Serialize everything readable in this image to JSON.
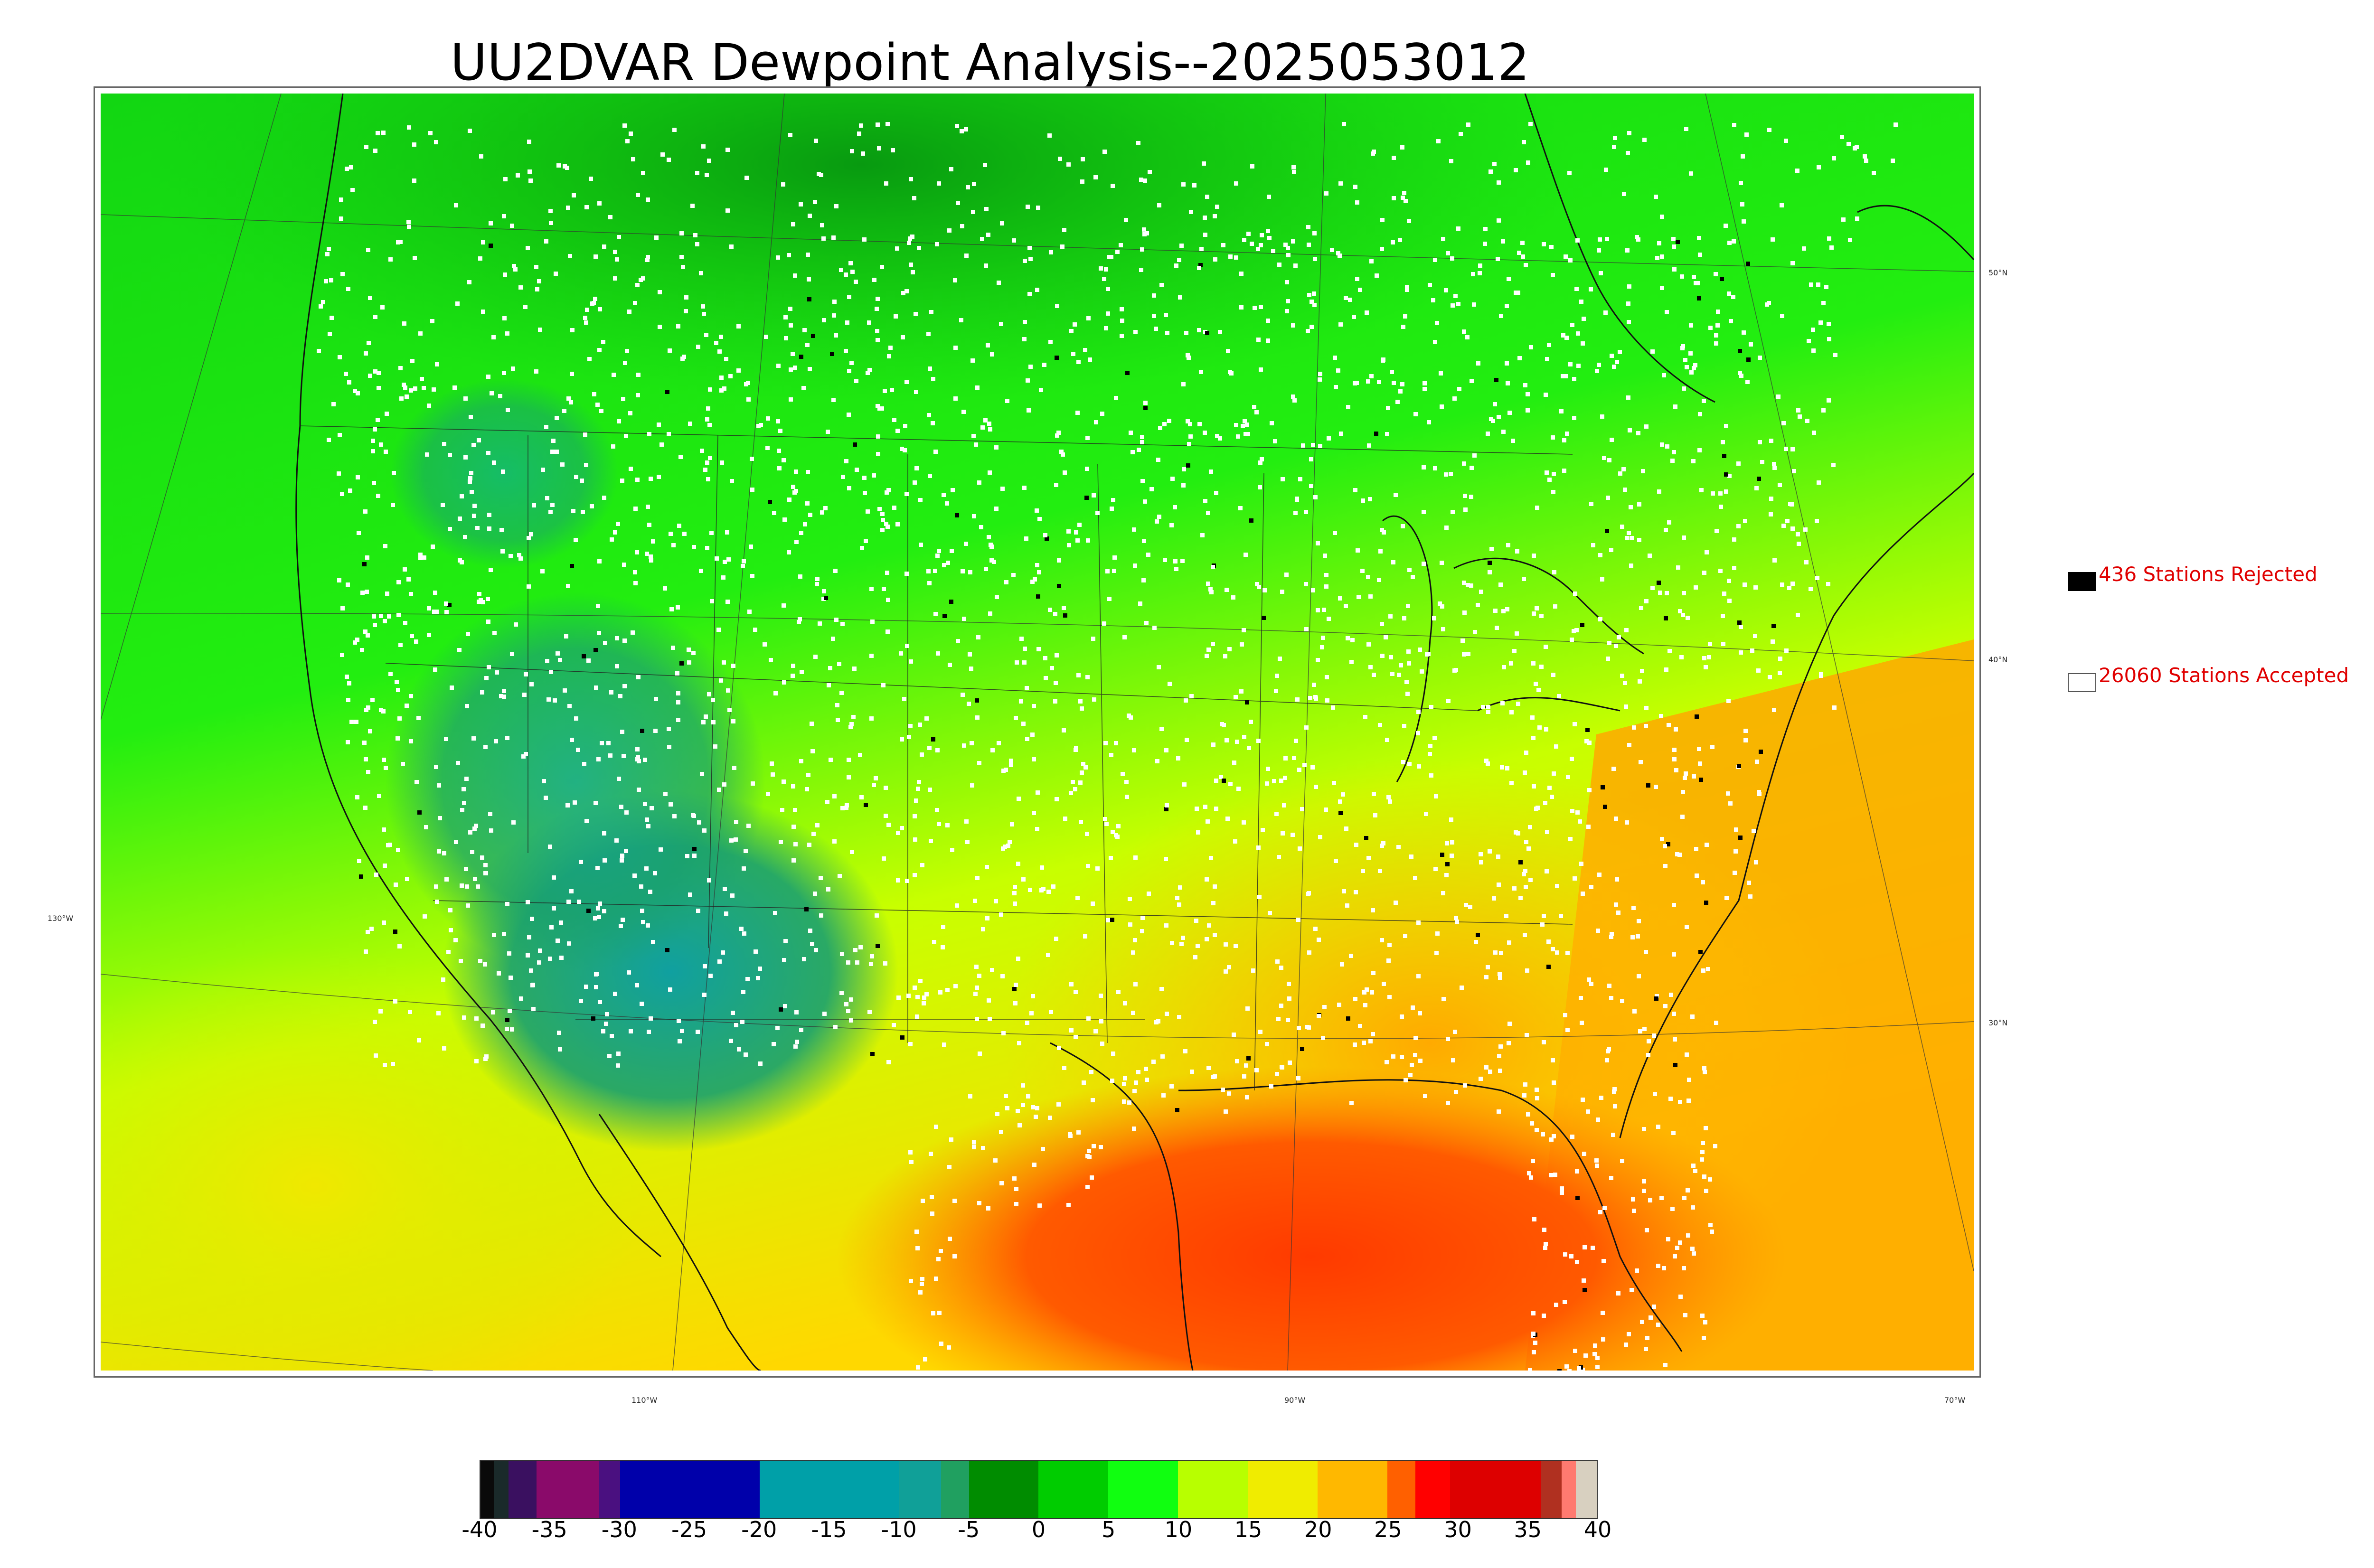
{
  "title": "UU2DVAR Dewpoint Analysis--2025053012",
  "legend": {
    "rejected": {
      "label": "436 Stations Rejected",
      "color": "#000000"
    },
    "accepted": {
      "label": "26060 Stations Accepted",
      "color": "#ffffff"
    }
  },
  "lat_labels": [
    "50°N",
    "40°N",
    "30°N"
  ],
  "lon_labels": [
    "130°W",
    "110°W",
    "90°W",
    "70°W"
  ],
  "colorbar": {
    "ticks": [
      "-40",
      "-35",
      "-30",
      "-25",
      "-20",
      "-15",
      "-10",
      "-5",
      "0",
      "5",
      "10",
      "15",
      "20",
      "25",
      "30",
      "35",
      "40"
    ],
    "min": -40,
    "max": 40,
    "units_note": "",
    "stops": [
      {
        "from": -40,
        "to": -39,
        "color": "#0a0a0a"
      },
      {
        "from": -39,
        "to": -38,
        "color": "#1a2a2a"
      },
      {
        "from": -38,
        "to": -36,
        "color": "#3a1060"
      },
      {
        "from": -36,
        "to": -31.5,
        "color": "#8a0a6a"
      },
      {
        "from": -31.5,
        "to": -30,
        "color": "#4a1080"
      },
      {
        "from": -30,
        "to": -20,
        "color": "#0000aa"
      },
      {
        "from": -20,
        "to": -10,
        "color": "#00a0a8"
      },
      {
        "from": -10,
        "to": -7,
        "color": "#10a098"
      },
      {
        "from": -7,
        "to": -5,
        "color": "#20a060"
      },
      {
        "from": -5,
        "to": 0,
        "color": "#008c00"
      },
      {
        "from": 0,
        "to": 5,
        "color": "#00cc00"
      },
      {
        "from": 5,
        "to": 10,
        "color": "#10ff10"
      },
      {
        "from": 10,
        "to": 15,
        "color": "#b8ff00"
      },
      {
        "from": 15,
        "to": 20,
        "color": "#f0ec00"
      },
      {
        "from": 20,
        "to": 25,
        "color": "#ffb800"
      },
      {
        "from": 25,
        "to": 27,
        "color": "#ff6000"
      },
      {
        "from": 27,
        "to": 29.5,
        "color": "#ff0000"
      },
      {
        "from": 29.5,
        "to": 36,
        "color": "#dd0000"
      },
      {
        "from": 36,
        "to": 37.5,
        "color": "#b03020"
      },
      {
        "from": 37.5,
        "to": 38.5,
        "color": "#ff7a70"
      },
      {
        "from": 38.5,
        "to": 40,
        "color": "#d8d0c0"
      }
    ]
  },
  "map_colors": {
    "cold": "#18a060",
    "cool": "#00cc00",
    "mild": "#2fff10",
    "warm": "#c8ff00",
    "humid": "#ffd000",
    "hot": "#ff9800",
    "very_hot": "#ff5000",
    "very_dry": "#10a0a0"
  }
}
